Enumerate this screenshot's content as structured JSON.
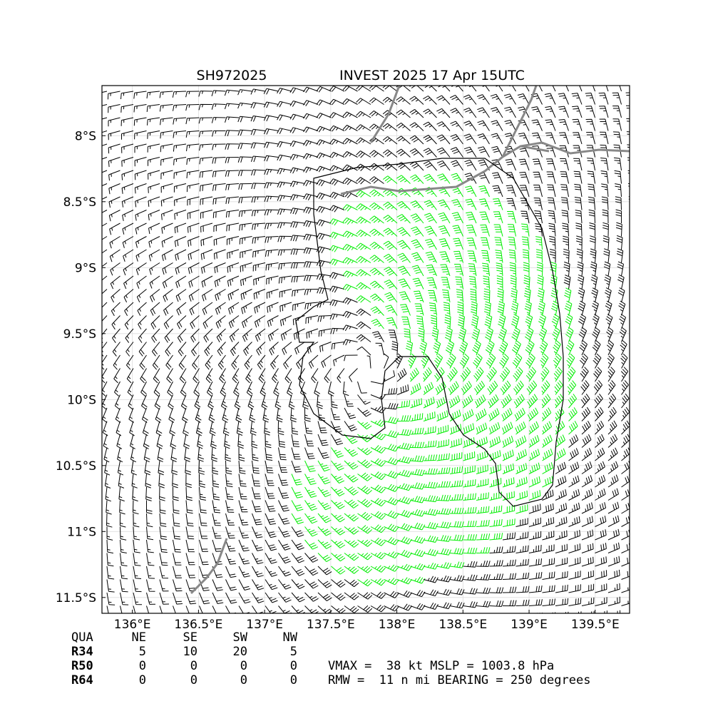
{
  "header": {
    "storm_id": "SH972025",
    "title": "INVEST 2025 17 Apr 15UTC"
  },
  "map": {
    "xlim": [
      135.77,
      139.76
    ],
    "ylim": [
      -11.62,
      -7.62
    ],
    "xticks": [
      {
        "value": 136,
        "label": "136°E"
      },
      {
        "value": 136.5,
        "label": "136.5°E"
      },
      {
        "value": 137,
        "label": "137°E"
      },
      {
        "value": 137.5,
        "label": "137.5°E"
      },
      {
        "value": 138,
        "label": "138°E"
      },
      {
        "value": 138.5,
        "label": "138.5°E"
      },
      {
        "value": 139,
        "label": "139°E"
      },
      {
        "value": 139.5,
        "label": "139.5°E"
      }
    ],
    "yticks": [
      {
        "value": -8,
        "label": "8°S"
      },
      {
        "value": -8.5,
        "label": "8.5°S"
      },
      {
        "value": -9,
        "label": "9°S"
      },
      {
        "value": -9.5,
        "label": "9.5°S"
      },
      {
        "value": -10,
        "label": "10°S"
      },
      {
        "value": -10.5,
        "label": "10.5°S"
      },
      {
        "value": -11,
        "label": "11°S"
      },
      {
        "value": -11.5,
        "label": "11.5°S"
      }
    ]
  },
  "table": {
    "header": [
      "QUA",
      "NE",
      "SE",
      "SW",
      "NW"
    ],
    "rows": [
      [
        "R34",
        "5",
        "10",
        "20",
        "5"
      ],
      [
        "R50",
        "0",
        "0",
        "0",
        "0"
      ],
      [
        "R64",
        "0",
        "0",
        "0",
        "0"
      ]
    ]
  },
  "summary": [
    "VMAX =  38 kt MSLP = 1003.8 hPa",
    "RMW =  11 n mi BEARING = 250 degrees"
  ]
}
